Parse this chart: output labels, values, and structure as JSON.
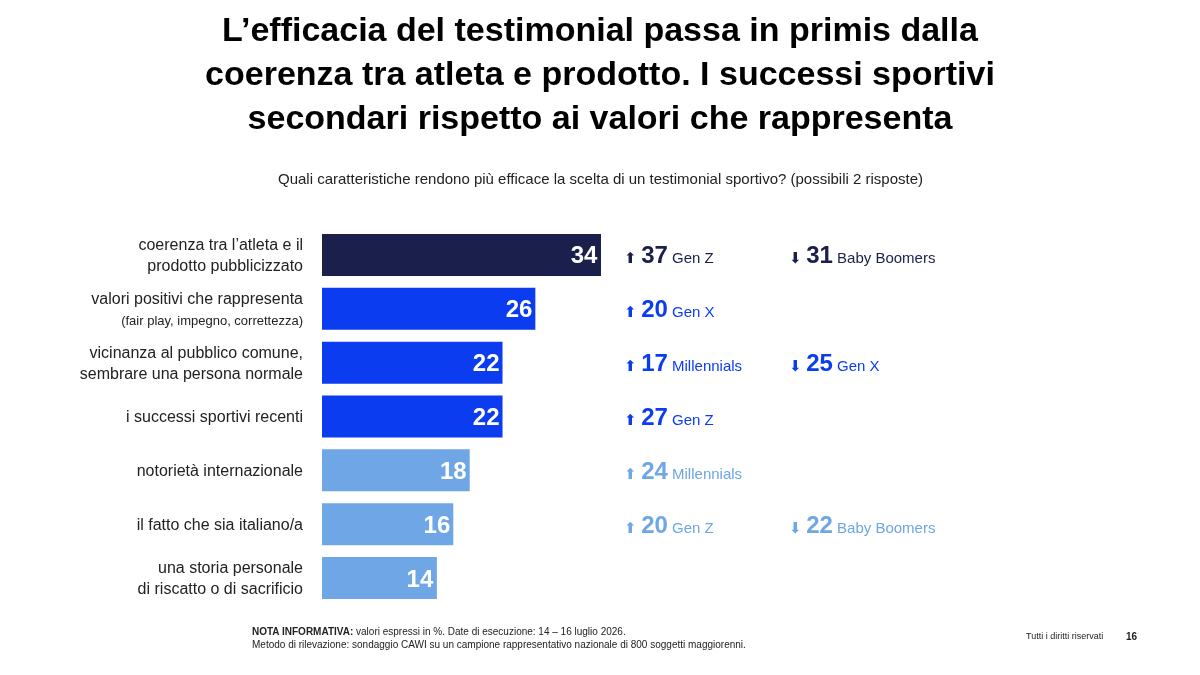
{
  "chart_data": {
    "type": "bar",
    "orientation": "horizontal",
    "title": "L’efficacia del testimonial passa in primis dalla\ncoerenza tra atleta e prodotto. I successi sportivi\nsecondari rispetto ai valori che rappresenta",
    "subtitle": "Quali caratteristiche rendono più efficace la scelta di un testimonial sportivo? (possibili 2 risposte)",
    "categories": [
      "coerenza tra l’atleta e il\nprodotto pubblicizzato",
      "valori positivi che rappresenta\n(fair play, impegno, correttezza)",
      "vicinanza al pubblico comune,\nsembrare una persona normale",
      "i successi sportivi recenti",
      "notorietà internazionale",
      "il fatto che sia italiano/a",
      "una storia personale\ndi riscatto o di sacrificio"
    ],
    "values": [
      34,
      26,
      22,
      22,
      18,
      16,
      14
    ],
    "colors": [
      "#1b1f4b",
      "#0b3cf0",
      "#0b3cf0",
      "#0b3cf0",
      "#6ea6e6",
      "#6ea6e6",
      "#6ea6e6"
    ],
    "xlim": [
      0,
      107
    ],
    "tick_labels": "y",
    "data_labels": true,
    "legend": false,
    "annotations": [
      "⬆ 37 Gen Z",
      "⬇ 31 Baby Boomers",
      "⬆ 20 Gen X",
      "⬆ 17 Millennials",
      "⬇ 25 Gen X",
      "⬆ 27 Gen Z",
      "⬆ 24 Millennials",
      "⬆ 20 Gen Z",
      "⬇ 22 Baby Boomers",
      "NOTA INFORMATIVA: valori espressi in %. Date di esecuzione: 14 – 16 luglio 2026.\nMetodo di rilevazione: sondaggio CAWI su un campione rappresentativo nazionale di 800 soggetti maggiorenni.",
      "Tutti i diritti riservati",
      "16"
    ]
  }
}
